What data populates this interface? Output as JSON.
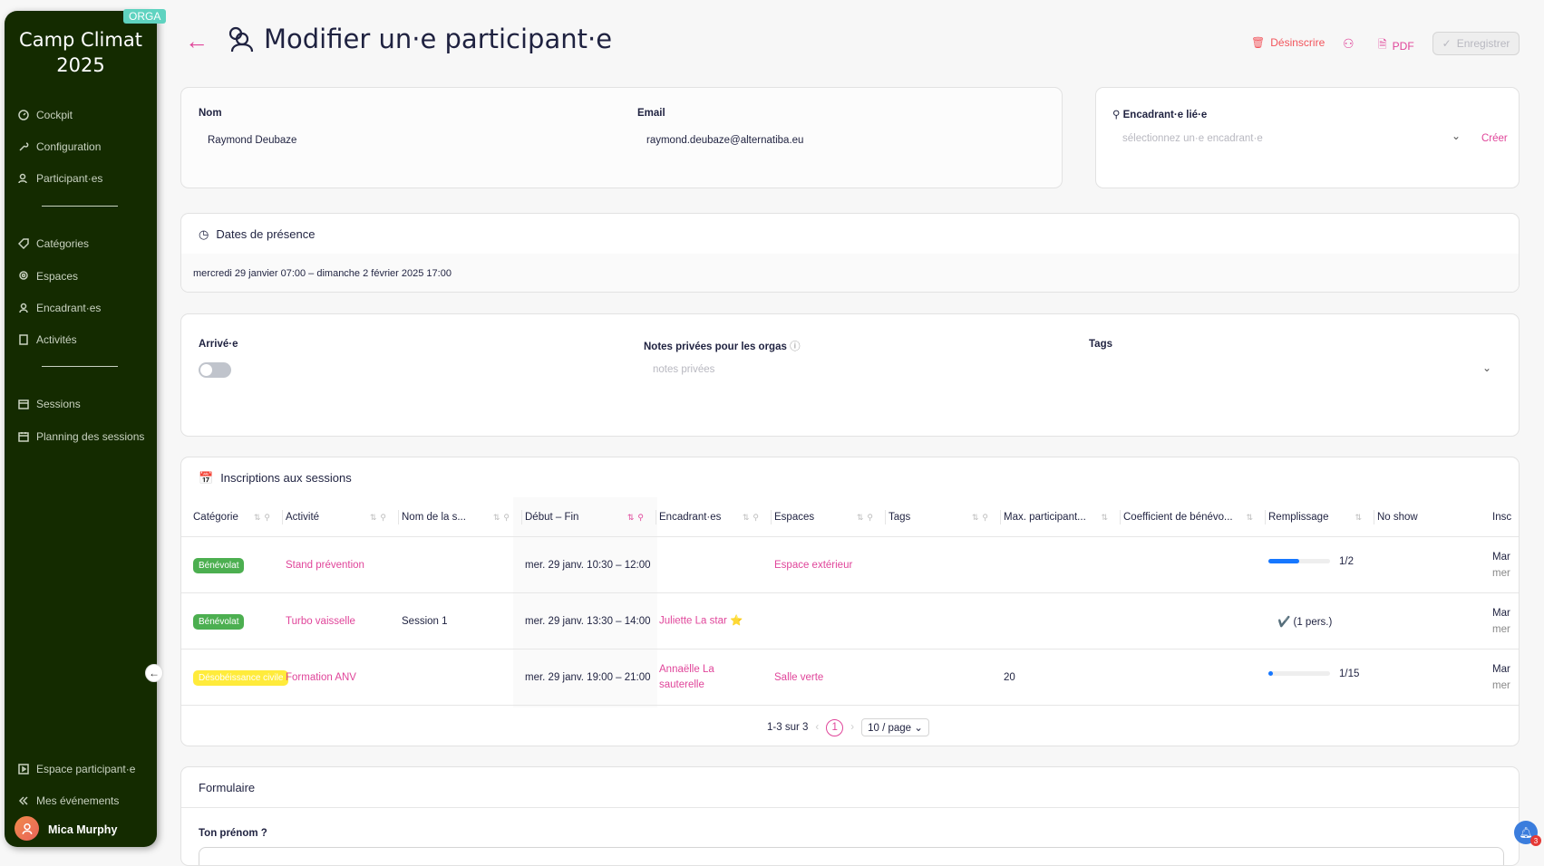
{
  "sidebar": {
    "title_line1": "Camp Climat",
    "title_line2": "2025",
    "badge": "ORGA",
    "items": [
      {
        "label": "Cockpit",
        "icon": "gauge-icon"
      },
      {
        "label": "Configuration",
        "icon": "wrench-icon"
      },
      {
        "label": "Participant·es",
        "icon": "users-icon"
      },
      {
        "label": "Catégories",
        "icon": "tag-icon"
      },
      {
        "label": "Espaces",
        "icon": "map-pin-icon"
      },
      {
        "label": "Encadrant·es",
        "icon": "user-icon"
      },
      {
        "label": "Activités",
        "icon": "book-icon"
      },
      {
        "label": "Sessions",
        "icon": "calendar-check-icon"
      },
      {
        "label": "Planning des sessions",
        "icon": "calendar-icon"
      }
    ],
    "bottom": [
      {
        "label": "Espace participant·e",
        "icon": "play-square-icon"
      },
      {
        "label": "Mes événements",
        "icon": "double-chevron-left-icon"
      }
    ],
    "user": "Mica Murphy"
  },
  "header": {
    "title": "Modifier un·e participant·e",
    "unregister": "Désinscrire",
    "pdf": "PDF",
    "save": "Enregistrer"
  },
  "identity": {
    "name_label": "Nom",
    "name_value": "Raymond Deubaze",
    "email_label": "Email",
    "email_value": "raymond.deubaze@alternatiba.eu"
  },
  "steward": {
    "label": "Encadrant·e lié·e",
    "placeholder": "sélectionnez un·e encadrant·e",
    "create": "Créer"
  },
  "presence": {
    "title": "Dates de présence",
    "value": "mercredi 29 janvier 07:00 – dimanche 2 février 2025 17:00"
  },
  "status": {
    "arrived_label": "Arrivé·e",
    "arrived": false,
    "notes_label": "Notes privées pour les orgas",
    "notes_placeholder": "notes privées",
    "tags_label": "Tags"
  },
  "sessions": {
    "title": "Inscriptions aux sessions",
    "columns": [
      "Catégorie",
      "Activité",
      "Nom de la s...",
      "Début – Fin",
      "Encadrant·es",
      "Espaces",
      "Tags",
      "Max. participant...",
      "Coefficient de bénévo...",
      "Remplissage",
      "No show",
      "Insc"
    ],
    "rows": [
      {
        "category": "Bénévolat",
        "category_color": "#4caf50",
        "activity": "Stand prévention",
        "name": "",
        "time": "mer. 29 janv. 10:30 – 12:00",
        "stewards": "",
        "places": "Espace extérieur",
        "max": "",
        "fill": 0.5,
        "fill_text": "1/2",
        "insc1": "Mar",
        "insc2": "mer"
      },
      {
        "category": "Bénévolat",
        "category_color": "#4caf50",
        "activity": "Turbo vaisselle",
        "name": "Session 1",
        "time": "mer. 29 janv. 13:30 – 14:00",
        "stewards": "Juliette La star ⭐",
        "places": "",
        "max": "",
        "fill_text": "✔️ (1 pers.)",
        "insc1": "Mar",
        "insc2": "mer"
      },
      {
        "category": "Désobéissance civile",
        "category_color": "#ffeb3b",
        "activity": "Formation ANV",
        "name": "",
        "time": "mer. 29 janv. 19:00 – 21:00",
        "stewards": "Annaëlle La sauterelle",
        "places": "Salle verte",
        "max": "20",
        "fill": 0.0667,
        "fill_text": "1/15",
        "insc1": "Mar",
        "insc2": "mer"
      }
    ],
    "pagination": {
      "summary": "1-3 sur 3",
      "page": "1",
      "page_size": "10 / page"
    }
  },
  "form": {
    "title": "Formulaire",
    "q1": "Ton prénom ?"
  },
  "notifications": {
    "count": "3"
  },
  "colors": {
    "accent": "#e0459a",
    "sidebar": "#142b00",
    "progress": "#1677ff"
  }
}
